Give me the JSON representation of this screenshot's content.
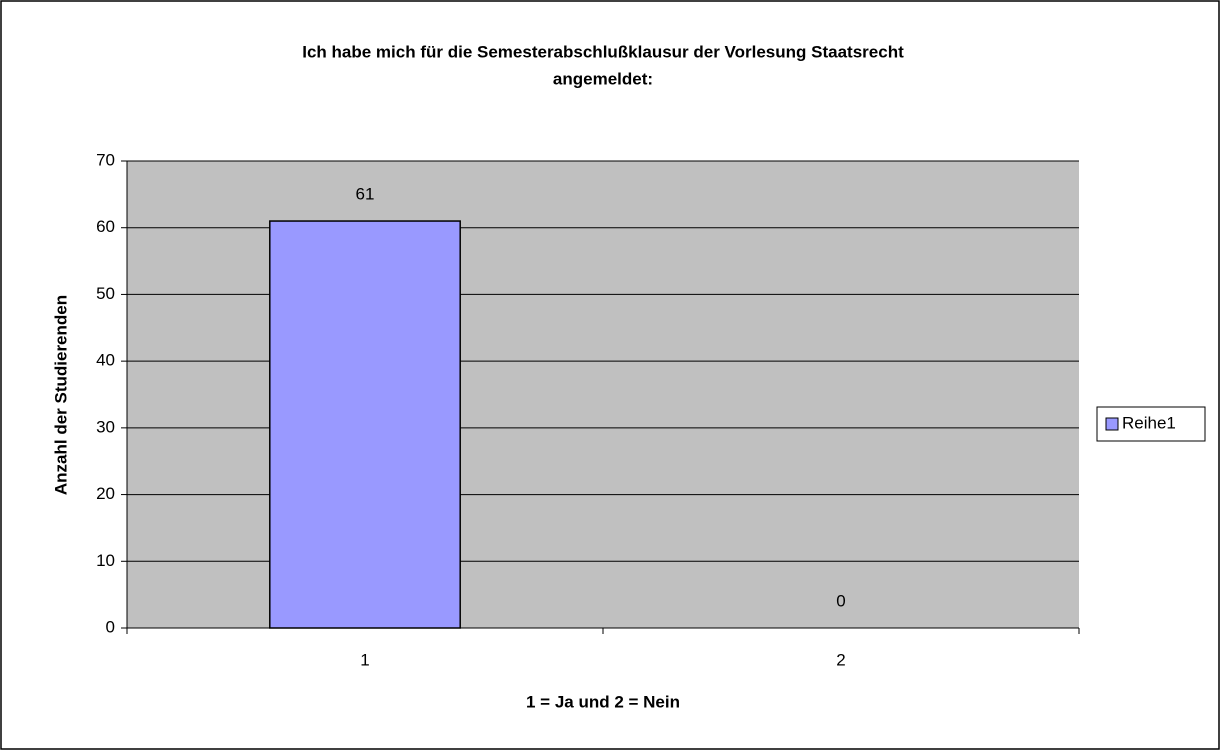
{
  "chart_data": {
    "type": "bar",
    "title": [
      "Ich habe mich für die Semesterabschlußklausur der Vorlesung Staatsrecht",
      "angemeldet:"
    ],
    "x_label": "1 = Ja und 2 = Nein",
    "y_label": "Anzahl der Studierenden",
    "categories": [
      "1",
      "2"
    ],
    "series": [
      {
        "name": "Reihe1",
        "color": "#9999ff",
        "values": [
          61,
          0
        ]
      }
    ],
    "ylim": [
      0,
      70
    ],
    "yticks": [
      0,
      10,
      20,
      30,
      40,
      50,
      60,
      70
    ],
    "grid": true,
    "legend": "right"
  }
}
